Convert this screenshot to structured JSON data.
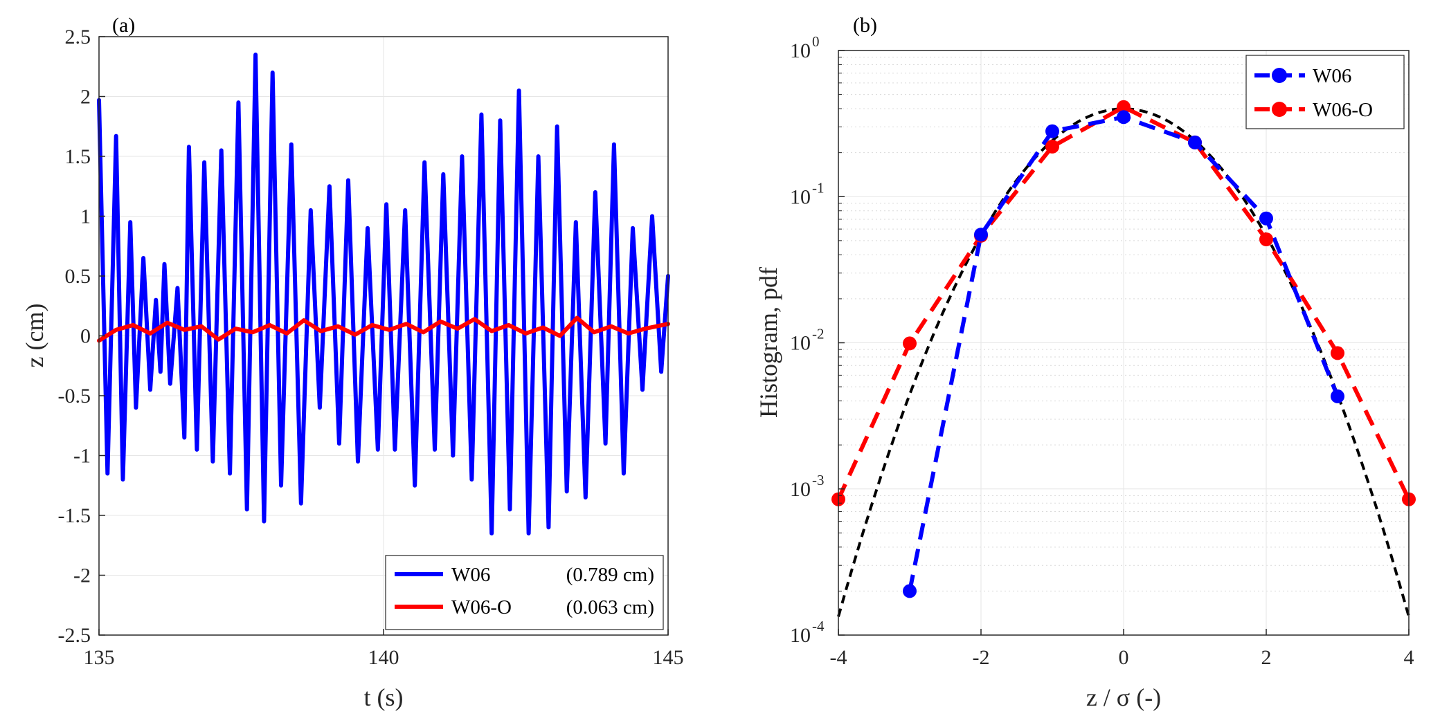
{
  "chart_data": [
    {
      "panel_label": "(a)",
      "type": "line",
      "title": "",
      "xlabel": "t (s)",
      "ylabel": "z (cm)",
      "xlim": [
        135,
        145
      ],
      "ylim": [
        -2.5,
        2.5
      ],
      "xticks": [
        135,
        140,
        145
      ],
      "xtick_labels": [
        "135",
        "140",
        "145"
      ],
      "yticks": [
        2.5,
        2,
        1.5,
        1,
        0.5,
        0,
        -0.5,
        -1,
        -1.5,
        -2,
        -2.5
      ],
      "ytick_labels": [
        "2.5",
        "2",
        "1.5",
        "1",
        "0.5",
        "0",
        "-0.5",
        "-1",
        "-1.5",
        "-2",
        "-2.5"
      ],
      "grid": true,
      "legend_position": "bottom-right",
      "series": [
        {
          "name": "W06",
          "legend_name": "W06",
          "legend_note": "(0.789 cm)",
          "color": "#0000ff",
          "x": [
            135.0,
            135.15,
            135.3,
            135.42,
            135.55,
            135.65,
            135.78,
            135.9,
            136.0,
            136.08,
            136.15,
            136.25,
            136.38,
            136.5,
            136.58,
            136.72,
            136.85,
            137.0,
            137.15,
            137.3,
            137.45,
            137.6,
            137.75,
            137.9,
            138.05,
            138.2,
            138.38,
            138.55,
            138.72,
            138.88,
            139.05,
            139.22,
            139.38,
            139.55,
            139.72,
            139.9,
            140.05,
            140.2,
            140.38,
            140.55,
            140.72,
            140.9,
            141.05,
            141.22,
            141.38,
            141.55,
            141.72,
            141.9,
            142.05,
            142.22,
            142.38,
            142.55,
            142.72,
            142.9,
            143.05,
            143.22,
            143.38,
            143.55,
            143.72,
            143.9,
            144.05,
            144.22,
            144.38,
            144.55,
            144.72,
            144.88,
            145.0
          ],
          "y": [
            1.97,
            -1.15,
            1.67,
            -1.2,
            0.95,
            -0.6,
            0.65,
            -0.45,
            0.3,
            -0.3,
            0.6,
            -0.4,
            0.4,
            -0.85,
            1.58,
            -0.95,
            1.45,
            -1.05,
            1.55,
            -1.15,
            1.95,
            -1.45,
            2.35,
            -1.55,
            2.2,
            -1.25,
            1.6,
            -1.4,
            1.05,
            -0.6,
            1.25,
            -0.9,
            1.3,
            -1.05,
            0.9,
            -0.95,
            1.1,
            -0.95,
            1.05,
            -1.25,
            1.45,
            -0.95,
            1.35,
            -1.0,
            1.5,
            -1.2,
            1.85,
            -1.65,
            1.8,
            -1.45,
            2.05,
            -1.65,
            1.5,
            -1.6,
            1.75,
            -1.3,
            0.95,
            -1.35,
            1.2,
            -0.9,
            1.6,
            -1.15,
            0.9,
            -0.45,
            1.0,
            -0.3,
            0.5
          ]
        },
        {
          "name": "W06-O",
          "legend_name": "W06-O",
          "legend_note": "(0.063 cm)",
          "color": "#ff0000",
          "x": [
            135.0,
            135.3,
            135.6,
            135.9,
            136.2,
            136.5,
            136.8,
            137.1,
            137.4,
            137.7,
            138.0,
            138.3,
            138.6,
            138.9,
            139.2,
            139.5,
            139.8,
            140.1,
            140.4,
            140.7,
            141.0,
            141.3,
            141.6,
            141.9,
            142.2,
            142.5,
            142.8,
            143.1,
            143.4,
            143.7,
            144.0,
            144.3,
            144.6,
            145.0
          ],
          "y": [
            -0.04,
            0.05,
            0.09,
            0.02,
            0.11,
            0.05,
            0.08,
            -0.03,
            0.06,
            0.03,
            0.09,
            0.02,
            0.13,
            0.04,
            0.08,
            0.01,
            0.09,
            0.05,
            0.1,
            0.03,
            0.12,
            0.06,
            0.14,
            0.04,
            0.09,
            0.02,
            0.07,
            0.0,
            0.15,
            0.03,
            0.08,
            0.02,
            0.06,
            0.1
          ]
        }
      ]
    },
    {
      "panel_label": "(b)",
      "type": "line",
      "title": "",
      "xlabel": "z / σ (-)",
      "ylabel": "Histogram, pdf",
      "xlim": [
        -4,
        4
      ],
      "ylim": [
        0.0001,
        1
      ],
      "yscale": "log",
      "xticks": [
        -4,
        -2,
        0,
        2,
        4
      ],
      "xtick_labels": [
        "-4",
        "-2",
        "0",
        "2",
        "4"
      ],
      "ytick_labels": [
        {
          "base": "10",
          "exp": "0"
        },
        {
          "base": "10",
          "exp": "-1"
        },
        {
          "base": "10",
          "exp": "-2"
        },
        {
          "base": "10",
          "exp": "-3"
        },
        {
          "base": "10",
          "exp": "-4"
        }
      ],
      "grid": true,
      "legend_position": "top-right",
      "series": [
        {
          "name": "W06",
          "color": "#0000ff",
          "style": "dashed-markers",
          "x": [
            -3,
            -2,
            -1,
            0,
            1,
            2,
            3
          ],
          "y": [
            0.0002,
            0.055,
            0.28,
            0.35,
            0.235,
            0.071,
            0.0043
          ]
        },
        {
          "name": "W06-O",
          "color": "#ff0000",
          "style": "dashed-markers",
          "x": [
            -4,
            -3,
            -2,
            -1,
            0,
            1,
            2,
            3,
            4
          ],
          "y": [
            0.00085,
            0.0099,
            0.054,
            0.22,
            0.41,
            0.235,
            0.051,
            0.0085,
            0.00085
          ]
        },
        {
          "name": "Gaussian",
          "color": "#000000",
          "style": "dashed",
          "function": "standard-normal-pdf",
          "x_range": [
            -4,
            4
          ]
        }
      ]
    }
  ]
}
